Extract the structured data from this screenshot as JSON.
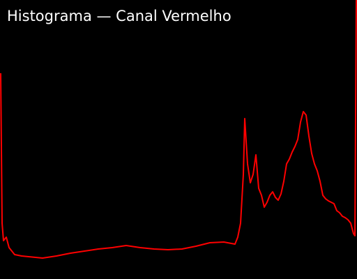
{
  "chart_data": {
    "type": "line",
    "title": "Histograma — Canal Vermelho",
    "color": "#ff0000",
    "xlim": [
      0,
      255
    ],
    "ylim": [
      0,
      400
    ],
    "x": [
      0,
      1,
      2,
      4,
      6,
      10,
      15,
      20,
      30,
      40,
      50,
      60,
      70,
      80,
      90,
      100,
      110,
      120,
      130,
      140,
      150,
      160,
      168,
      170,
      172,
      174,
      175,
      177,
      179,
      181,
      183,
      185,
      187,
      189,
      191,
      193,
      195,
      197,
      199,
      201,
      203,
      205,
      207,
      209,
      211,
      213,
      215,
      217,
      219,
      221,
      223,
      225,
      227,
      229,
      231,
      233,
      235,
      237,
      239,
      241,
      243,
      245,
      247,
      249,
      251,
      253,
      254,
      255
    ],
    "values": [
      295,
      80,
      55,
      60,
      45,
      35,
      33,
      32,
      30,
      33,
      37,
      40,
      43,
      45,
      48,
      45,
      43,
      42,
      43,
      47,
      52,
      53,
      50,
      60,
      80,
      150,
      230,
      165,
      138,
      150,
      178,
      130,
      120,
      103,
      110,
      120,
      125,
      117,
      113,
      122,
      140,
      165,
      172,
      182,
      190,
      200,
      225,
      240,
      235,
      205,
      180,
      165,
      155,
      140,
      120,
      115,
      112,
      110,
      108,
      98,
      95,
      90,
      88,
      85,
      80,
      65,
      62,
      400
    ]
  }
}
